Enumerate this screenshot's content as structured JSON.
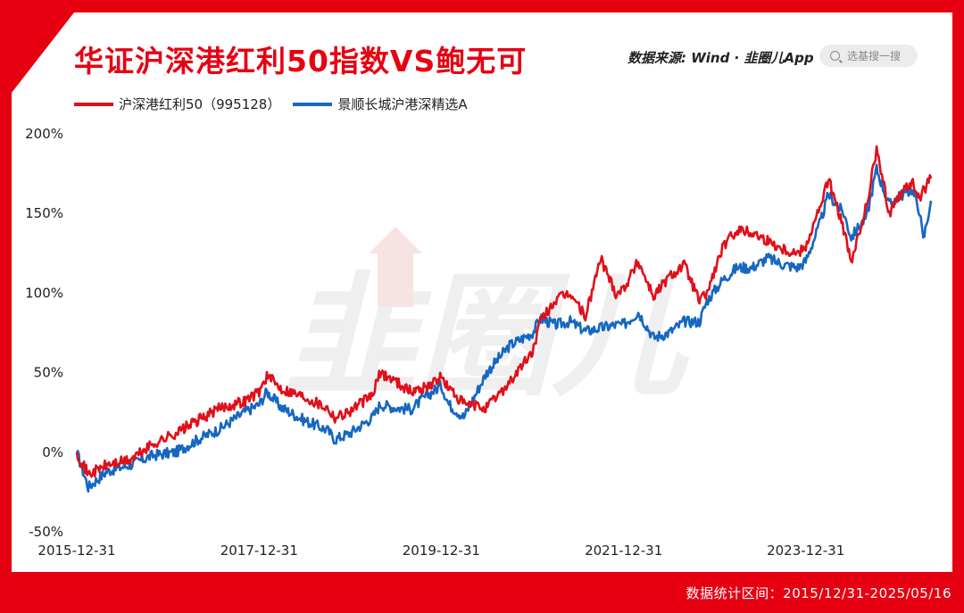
{
  "header": {
    "title": "华证沪深港红利50指数VS鲍无可",
    "source_text": "数据来源: Wind · 韭圈儿App",
    "search_placeholder": "选基搜一搜",
    "watermark": "韭圈儿"
  },
  "footer": {
    "range_text": "数据统计区间：2015/12/31-2025/05/16"
  },
  "colors": {
    "brand_red": "#e60012",
    "series_red": "#e0101a",
    "series_blue": "#1667c1"
  },
  "chart_data": {
    "type": "line",
    "x_ticks": [
      "2015-12-31",
      "2017-12-31",
      "2019-12-31",
      "2021-12-31",
      "2023-12-31"
    ],
    "y_ticks": [
      "200%",
      "150%",
      "100%",
      "50%",
      "0%",
      "-50%"
    ],
    "ylim": [
      -50,
      200
    ],
    "xlim": [
      "2015-12-31",
      "2025-05-16"
    ],
    "legend_position": "top-left",
    "grid": false,
    "series": [
      {
        "name": "沪深港红利50（995128）",
        "color": "#e0101a",
        "points": [
          [
            "2015-12-31",
            0
          ],
          [
            "2016-02-15",
            -14
          ],
          [
            "2016-04-30",
            -8
          ],
          [
            "2016-07-31",
            -5
          ],
          [
            "2016-10-31",
            5
          ],
          [
            "2017-01-31",
            12
          ],
          [
            "2017-04-30",
            20
          ],
          [
            "2017-07-31",
            28
          ],
          [
            "2017-10-31",
            32
          ],
          [
            "2017-12-31",
            38
          ],
          [
            "2018-01-31",
            48
          ],
          [
            "2018-03-31",
            40
          ],
          [
            "2018-06-30",
            35
          ],
          [
            "2018-09-30",
            28
          ],
          [
            "2018-10-31",
            22
          ],
          [
            "2018-12-31",
            26
          ],
          [
            "2019-03-31",
            36
          ],
          [
            "2019-04-30",
            50
          ],
          [
            "2019-06-30",
            45
          ],
          [
            "2019-08-31",
            38
          ],
          [
            "2019-10-31",
            41
          ],
          [
            "2019-12-31",
            47
          ],
          [
            "2020-01-31",
            40
          ],
          [
            "2020-03-31",
            30
          ],
          [
            "2020-06-30",
            28
          ],
          [
            "2020-09-30",
            44
          ],
          [
            "2020-12-31",
            63
          ],
          [
            "2021-01-31",
            82
          ],
          [
            "2021-03-31",
            95
          ],
          [
            "2021-05-31",
            100
          ],
          [
            "2021-07-31",
            85
          ],
          [
            "2021-09-30",
            122
          ],
          [
            "2021-11-30",
            100
          ],
          [
            "2021-12-31",
            103
          ],
          [
            "2022-02-28",
            120
          ],
          [
            "2022-04-30",
            98
          ],
          [
            "2022-06-30",
            110
          ],
          [
            "2022-08-31",
            118
          ],
          [
            "2022-10-31",
            95
          ],
          [
            "2022-11-30",
            100
          ],
          [
            "2023-01-31",
            128
          ],
          [
            "2023-03-31",
            140
          ],
          [
            "2023-05-31",
            138
          ],
          [
            "2023-07-31",
            133
          ],
          [
            "2023-09-30",
            128
          ],
          [
            "2023-11-30",
            125
          ],
          [
            "2023-12-31",
            130
          ],
          [
            "2024-02-29",
            155
          ],
          [
            "2024-03-31",
            172
          ],
          [
            "2024-05-31",
            140
          ],
          [
            "2024-06-30",
            118
          ],
          [
            "2024-08-31",
            155
          ],
          [
            "2024-10-10",
            190
          ],
          [
            "2024-11-30",
            150
          ],
          [
            "2024-12-31",
            160
          ],
          [
            "2025-02-28",
            170
          ],
          [
            "2025-03-31",
            158
          ],
          [
            "2025-04-15",
            164
          ],
          [
            "2025-05-16",
            172
          ]
        ]
      },
      {
        "name": "景顺长城沪港深精选A",
        "color": "#1667c1",
        "points": [
          [
            "2015-12-31",
            0
          ],
          [
            "2016-02-15",
            -22
          ],
          [
            "2016-04-30",
            -12
          ],
          [
            "2016-07-31",
            -8
          ],
          [
            "2016-10-31",
            -2
          ],
          [
            "2017-01-31",
            0
          ],
          [
            "2017-04-30",
            8
          ],
          [
            "2017-07-31",
            15
          ],
          [
            "2017-10-31",
            25
          ],
          [
            "2017-12-31",
            30
          ],
          [
            "2018-01-31",
            38
          ],
          [
            "2018-03-31",
            28
          ],
          [
            "2018-06-30",
            20
          ],
          [
            "2018-09-30",
            14
          ],
          [
            "2018-10-31",
            8
          ],
          [
            "2018-12-31",
            12
          ],
          [
            "2019-03-31",
            22
          ],
          [
            "2019-04-30",
            30
          ],
          [
            "2019-06-30",
            28
          ],
          [
            "2019-08-31",
            27
          ],
          [
            "2019-10-31",
            35
          ],
          [
            "2019-12-31",
            42
          ],
          [
            "2020-01-31",
            30
          ],
          [
            "2020-03-31",
            22
          ],
          [
            "2020-06-30",
            50
          ],
          [
            "2020-09-30",
            67
          ],
          [
            "2020-12-31",
            75
          ],
          [
            "2021-01-31",
            84
          ],
          [
            "2021-03-31",
            80
          ],
          [
            "2021-05-31",
            82
          ],
          [
            "2021-07-31",
            76
          ],
          [
            "2021-09-30",
            78
          ],
          [
            "2021-11-30",
            80
          ],
          [
            "2021-12-31",
            80
          ],
          [
            "2022-02-28",
            88
          ],
          [
            "2022-04-30",
            72
          ],
          [
            "2022-06-30",
            75
          ],
          [
            "2022-08-31",
            82
          ],
          [
            "2022-10-31",
            82
          ],
          [
            "2022-11-30",
            95
          ],
          [
            "2023-01-31",
            108
          ],
          [
            "2023-03-31",
            116
          ],
          [
            "2023-05-31",
            116
          ],
          [
            "2023-07-31",
            122
          ],
          [
            "2023-09-30",
            118
          ],
          [
            "2023-11-30",
            116
          ],
          [
            "2023-12-31",
            120
          ],
          [
            "2024-02-29",
            145
          ],
          [
            "2024-03-31",
            162
          ],
          [
            "2024-05-31",
            150
          ],
          [
            "2024-06-30",
            135
          ],
          [
            "2024-08-31",
            148
          ],
          [
            "2024-10-10",
            178
          ],
          [
            "2024-11-30",
            155
          ],
          [
            "2024-12-31",
            160
          ],
          [
            "2025-02-28",
            165
          ],
          [
            "2025-03-31",
            152
          ],
          [
            "2025-04-15",
            133
          ],
          [
            "2025-05-16",
            158
          ]
        ]
      }
    ]
  }
}
